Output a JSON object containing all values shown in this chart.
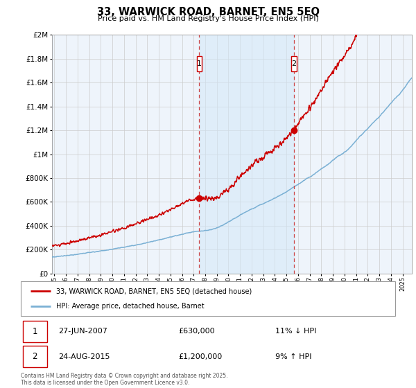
{
  "title": "33, WARWICK ROAD, BARNET, EN5 5EQ",
  "subtitle": "Price paid vs. HM Land Registry's House Price Index (HPI)",
  "legend_label_red": "33, WARWICK ROAD, BARNET, EN5 5EQ (detached house)",
  "legend_label_blue": "HPI: Average price, detached house, Barnet",
  "footnote": "Contains HM Land Registry data © Crown copyright and database right 2025.\nThis data is licensed under the Open Government Licence v3.0.",
  "sale1_date": "27-JUN-2007",
  "sale1_price": "£630,000",
  "sale1_hpi": "11% ↓ HPI",
  "sale1_year": 2007.49,
  "sale1_value": 630000,
  "sale2_date": "24-AUG-2015",
  "sale2_price": "£1,200,000",
  "sale2_hpi": "9% ↑ HPI",
  "sale2_year": 2015.65,
  "sale2_value": 1200000,
  "color_red": "#cc0000",
  "color_blue": "#7ab0d4",
  "color_fill": "#ddeef8",
  "chart_bg": "#eef4fb",
  "grid_color": "#cccccc",
  "ylim": [
    0,
    2000000
  ],
  "xlim_start": 1994.8,
  "xlim_end": 2025.8
}
